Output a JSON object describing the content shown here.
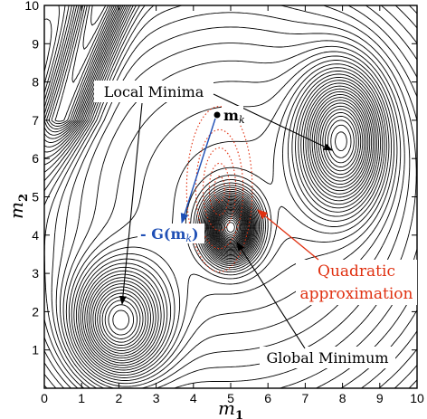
{
  "chart_data": {
    "type": "contour",
    "xlabel": "m",
    "xlabel_sub": "1",
    "ylabel": "m",
    "ylabel_sub": "2",
    "xlim": [
      0,
      10
    ],
    "ylim": [
      0,
      10
    ],
    "xticks": [
      "0",
      "1",
      "2",
      "3",
      "4",
      "5",
      "6",
      "7",
      "8",
      "9",
      "10"
    ],
    "yticks": [
      "1",
      "2",
      "3",
      "4",
      "5",
      "6",
      "7",
      "8",
      "9",
      "10"
    ],
    "grid": false,
    "contour_color": "#000000",
    "surface": {
      "base": 2.4,
      "wells": [
        {
          "label": "global",
          "x": 5.0,
          "y": 4.2,
          "depth": 2.3,
          "sx": 0.45,
          "sy": 0.55
        },
        {
          "label": "local-left",
          "x": 2.0,
          "y": 1.7,
          "depth": 1.6,
          "sx": 0.85,
          "sy": 1.0
        },
        {
          "label": "local-right",
          "x": 8.0,
          "y": 6.5,
          "depth": 1.7,
          "sx": 0.75,
          "sy": 1.2
        }
      ],
      "ridge": {
        "level": 1.2,
        "x_top": 1.5,
        "slope": 0.35,
        "width": 0.5
      }
    },
    "start_point": {
      "x": 4.7,
      "y": 7.2,
      "label": "m",
      "label_sub": "k"
    },
    "gradient_step": {
      "from": [
        4.7,
        7.2
      ],
      "to": [
        3.7,
        3.9
      ],
      "label": "- G(m",
      "label_sub": "k",
      "label_end": ")",
      "color": "#1f4fb5"
    },
    "quadratic_ellipses": {
      "center": [
        4.7,
        5.2
      ],
      "color": "#e03010"
    },
    "annotations": [
      {
        "text": "Local Minima",
        "color": "#000000"
      },
      {
        "text": "Quadratic",
        "color": "#e03010"
      },
      {
        "text": "approximation",
        "color": "#e03010"
      },
      {
        "text": "Global Minimum",
        "color": "#000000"
      }
    ]
  }
}
